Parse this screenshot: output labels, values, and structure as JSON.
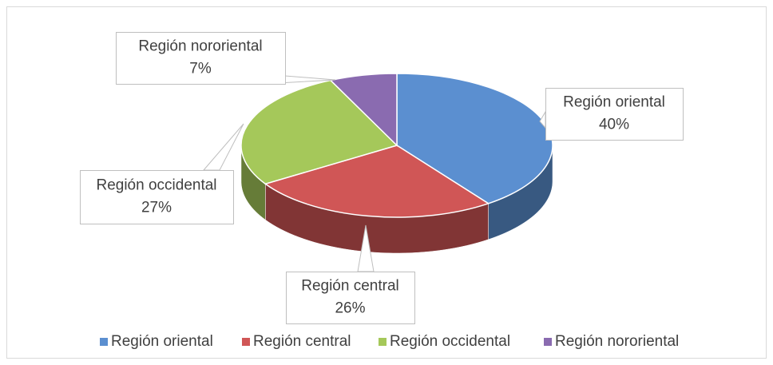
{
  "chart_data": {
    "type": "pie",
    "categories": [
      "Región oriental",
      "Región central",
      "Región occidental",
      "Región nororiental"
    ],
    "values": [
      40,
      26,
      27,
      7
    ],
    "value_labels": [
      "40%",
      "26%",
      "27%",
      "7%"
    ],
    "colors": [
      "#5b8fd0",
      "#d05656",
      "#a5c85a",
      "#8a6bb0"
    ],
    "legend": "bottom"
  }
}
